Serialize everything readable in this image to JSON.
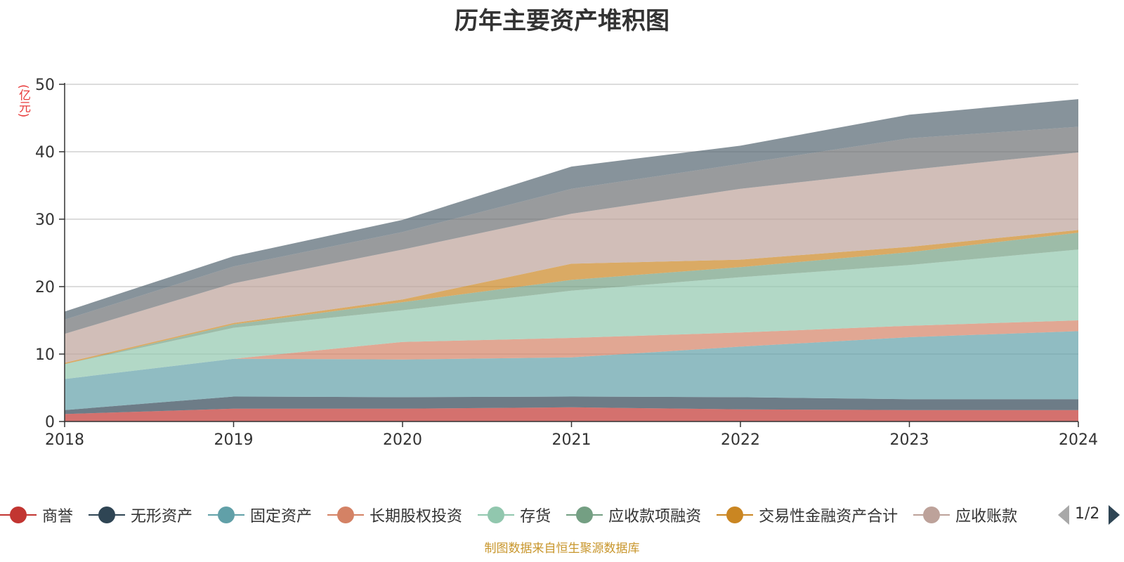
{
  "chart_data": {
    "type": "area",
    "stacked": true,
    "title": "历年主要资产堆积图",
    "ylabel": "(亿元)",
    "categories": [
      "2018",
      "2019",
      "2020",
      "2021",
      "2022",
      "2023",
      "2024"
    ],
    "ylim": [
      0,
      50
    ],
    "yticks": [
      0,
      10,
      20,
      30,
      40,
      50
    ],
    "grid": true,
    "legend_position": "bottom",
    "series": [
      {
        "name": "商誉",
        "color": "#c23531",
        "values": [
          1.1,
          1.9,
          1.9,
          2.1,
          1.8,
          1.7,
          1.7
        ]
      },
      {
        "name": "无形资产",
        "color": "#2f4554",
        "values": [
          0.6,
          1.8,
          1.7,
          1.6,
          1.8,
          1.6,
          1.6
        ]
      },
      {
        "name": "固定资产",
        "color": "#61a0a8",
        "values": [
          4.6,
          5.6,
          5.6,
          5.8,
          7.5,
          9.2,
          10.1
        ]
      },
      {
        "name": "长期股权投资",
        "color": "#d48265",
        "values": [
          0.0,
          0.0,
          2.6,
          2.9,
          2.1,
          1.7,
          1.6
        ]
      },
      {
        "name": "存货",
        "color": "#91c7ae",
        "values": [
          2.2,
          4.6,
          4.7,
          7.0,
          8.2,
          9.0,
          10.5
        ]
      },
      {
        "name": "应收款项融资",
        "color": "#749f83",
        "values": [
          0.0,
          0.5,
          1.2,
          1.6,
          1.5,
          1.9,
          2.5
        ]
      },
      {
        "name": "交易性金融资产合计",
        "color": "#ca8622",
        "values": [
          0.2,
          0.2,
          0.4,
          2.4,
          1.1,
          0.8,
          0.4
        ]
      },
      {
        "name": "应收账款",
        "color": "#bda29a",
        "values": [
          4.3,
          5.9,
          7.4,
          7.4,
          10.5,
          11.4,
          11.5
        ]
      },
      {
        "name": "",
        "color": "#6e7074",
        "values": [
          2.1,
          2.5,
          2.6,
          3.7,
          3.7,
          4.7,
          3.8
        ]
      },
      {
        "name": "",
        "color": "#546570",
        "values": [
          1.2,
          1.5,
          1.8,
          3.3,
          2.7,
          3.5,
          4.1
        ]
      }
    ]
  },
  "legend": {
    "page_indicator": "1/2"
  },
  "source_note": "制图数据来自恒生聚源数据库"
}
